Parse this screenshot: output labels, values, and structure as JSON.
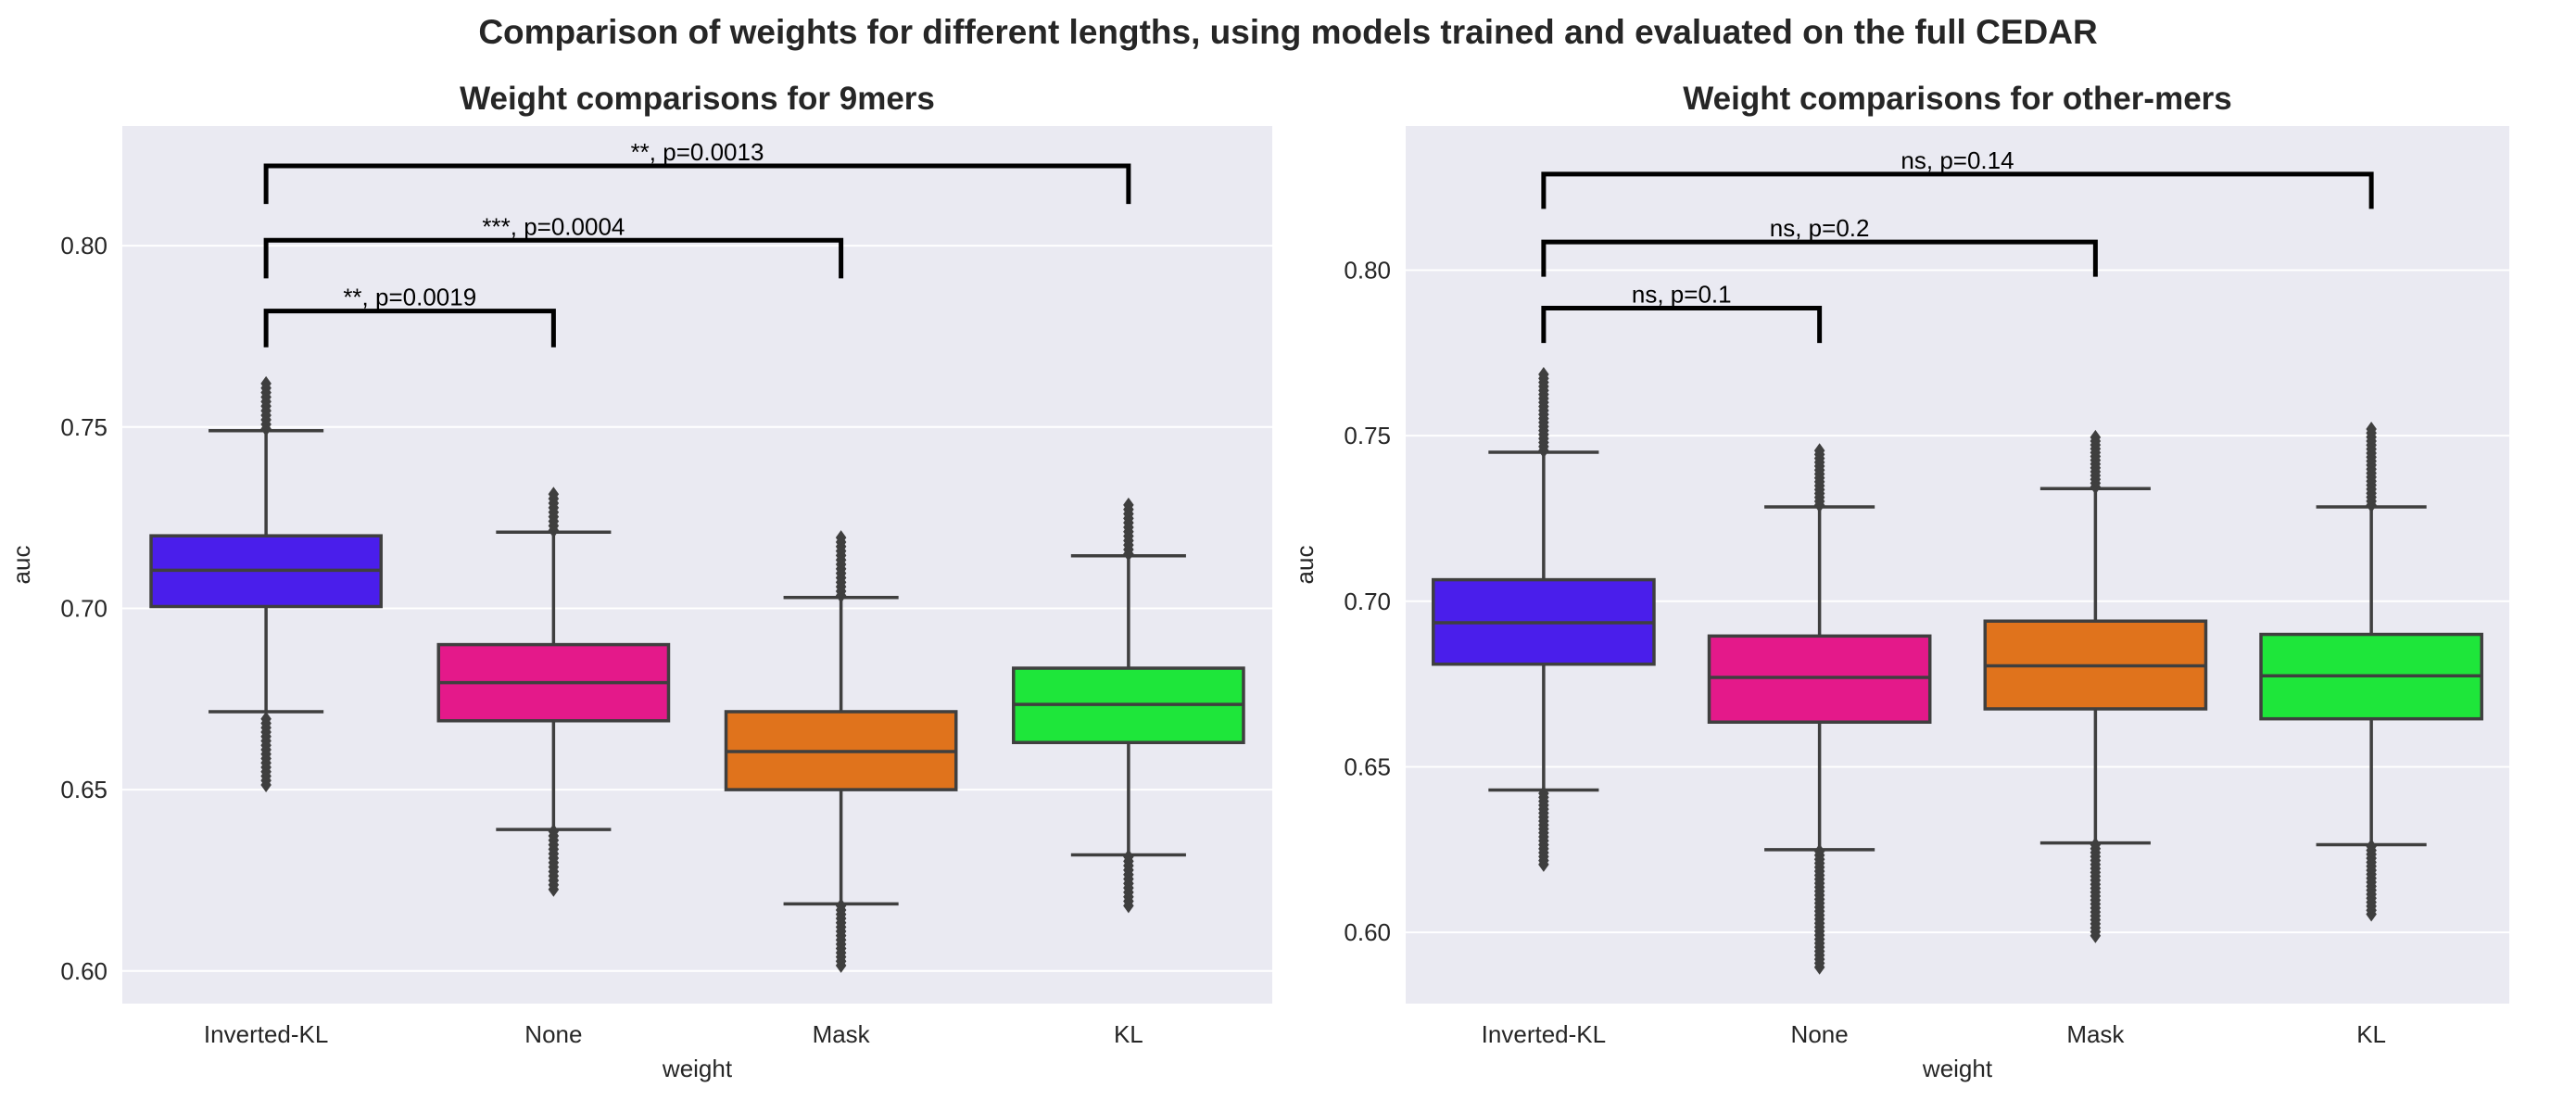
{
  "figure": {
    "suptitle": "Comparison of weights for different lengths, using models trained and evaluated on the full CEDAR"
  },
  "colors": {
    "panel_bg": "#eaeaf2",
    "grid": "#ffffff",
    "box_edge": "#3f3f3f",
    "Inverted-KL": "#4a1eeb",
    "None": "#e4198a",
    "Mask": "#e0731c",
    "KL": "#1ee63a"
  },
  "chart_data": [
    {
      "type": "box",
      "title": "Weight comparisons for 9mers",
      "xlabel": "weight",
      "ylabel": "auc",
      "ylim": [
        0.591,
        0.833
      ],
      "yticks": [
        0.6,
        0.65,
        0.7,
        0.75,
        0.8
      ],
      "ytick_labels": [
        "0.60",
        "0.65",
        "0.70",
        "0.75",
        "0.80"
      ],
      "grid": true,
      "categories": [
        "Inverted-KL",
        "None",
        "Mask",
        "KL"
      ],
      "boxes": [
        {
          "category": "Inverted-KL",
          "whislo": 0.6715,
          "q1": 0.7005,
          "med": 0.7105,
          "q3": 0.72,
          "whishi": 0.749,
          "flier_lo": [
            0.6513,
            0.6695
          ],
          "flier_hi": [
            0.7495,
            0.762
          ]
        },
        {
          "category": "None",
          "whislo": 0.639,
          "q1": 0.669,
          "med": 0.6795,
          "q3": 0.69,
          "whishi": 0.721,
          "flier_lo": [
            0.6225,
            0.6385
          ],
          "flier_hi": [
            0.7215,
            0.7315
          ]
        },
        {
          "category": "Mask",
          "whislo": 0.6185,
          "q1": 0.65,
          "med": 0.6605,
          "q3": 0.6715,
          "whishi": 0.703,
          "flier_lo": [
            0.6015,
            0.618
          ],
          "flier_hi": [
            0.7035,
            0.7195
          ]
        },
        {
          "category": "KL",
          "whislo": 0.632,
          "q1": 0.663,
          "med": 0.6735,
          "q3": 0.6835,
          "whishi": 0.7145,
          "flier_lo": [
            0.618,
            0.6315
          ],
          "flier_hi": [
            0.715,
            0.7285
          ]
        }
      ],
      "annotations": [
        {
          "from": "Inverted-KL",
          "to": "None",
          "text": "**, p=0.0019",
          "y_top": 0.782,
          "y_left": 0.772,
          "y_right": 0.772
        },
        {
          "from": "Inverted-KL",
          "to": "Mask",
          "text": "***, p=0.0004",
          "y_top": 0.8015,
          "y_left": 0.791,
          "y_right": 0.791
        },
        {
          "from": "Inverted-KL",
          "to": "KL",
          "text": "**, p=0.0013",
          "y_top": 0.822,
          "y_left": 0.8115,
          "y_right": 0.8115
        }
      ]
    },
    {
      "type": "box",
      "title": "Weight comparisons for other-mers",
      "xlabel": "weight",
      "ylabel": "auc",
      "ylim": [
        0.5785,
        0.8435
      ],
      "yticks": [
        0.6,
        0.65,
        0.7,
        0.75,
        0.8
      ],
      "ytick_labels": [
        "0.60",
        "0.65",
        "0.70",
        "0.75",
        "0.80"
      ],
      "grid": true,
      "categories": [
        "Inverted-KL",
        "None",
        "Mask",
        "KL"
      ],
      "boxes": [
        {
          "category": "Inverted-KL",
          "whislo": 0.643,
          "q1": 0.681,
          "med": 0.6935,
          "q3": 0.7065,
          "whishi": 0.745,
          "flier_lo": [
            0.6205,
            0.642
          ],
          "flier_hi": [
            0.7455,
            0.7685
          ]
        },
        {
          "category": "None",
          "whislo": 0.625,
          "q1": 0.6635,
          "med": 0.677,
          "q3": 0.6895,
          "whishi": 0.7285,
          "flier_lo": [
            0.5895,
            0.6245
          ],
          "flier_hi": [
            0.729,
            0.7455
          ]
        },
        {
          "category": "Mask",
          "whislo": 0.627,
          "q1": 0.6675,
          "med": 0.6805,
          "q3": 0.694,
          "whishi": 0.734,
          "flier_lo": [
            0.599,
            0.6265
          ],
          "flier_hi": [
            0.7345,
            0.7495
          ]
        },
        {
          "category": "KL",
          "whislo": 0.6265,
          "q1": 0.6645,
          "med": 0.6775,
          "q3": 0.69,
          "whishi": 0.7285,
          "flier_lo": [
            0.6055,
            0.626
          ],
          "flier_hi": [
            0.729,
            0.752
          ]
        }
      ],
      "annotations": [
        {
          "from": "Inverted-KL",
          "to": "None",
          "text": "ns, p=0.1",
          "y_top": 0.7885,
          "y_left": 0.778,
          "y_right": 0.778
        },
        {
          "from": "Inverted-KL",
          "to": "Mask",
          "text": "ns, p=0.2",
          "y_top": 0.8085,
          "y_left": 0.798,
          "y_right": 0.798
        },
        {
          "from": "Inverted-KL",
          "to": "KL",
          "text": "ns, p=0.14",
          "y_top": 0.829,
          "y_left": 0.8185,
          "y_right": 0.8185
        }
      ]
    }
  ]
}
